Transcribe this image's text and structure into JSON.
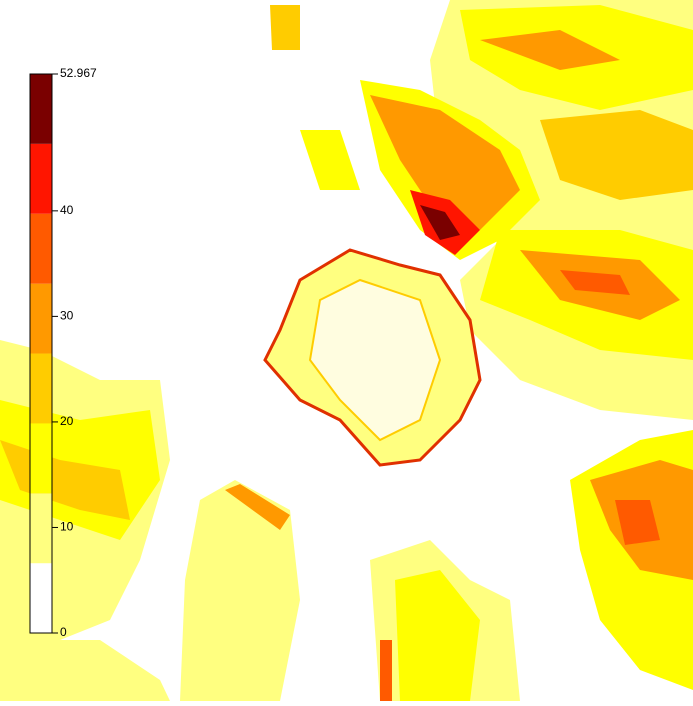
{
  "colorbar": {
    "min": 0,
    "max": 52.967,
    "ticks": [
      0,
      10,
      20,
      30,
      40,
      52.967
    ],
    "levels": [
      0,
      6.62,
      13.24,
      19.86,
      26.48,
      33.1,
      39.73,
      46.35,
      52.967
    ],
    "colors": [
      "#ffffff",
      "#ffff80",
      "#ffff00",
      "#ffcc00",
      "#ff9900",
      "#ff5a00",
      "#ff1500",
      "#7a0000"
    ]
  }
}
